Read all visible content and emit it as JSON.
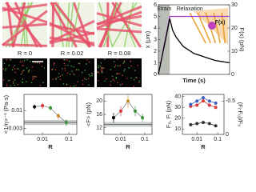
{
  "images": {
    "labels": [
      "R = 0",
      "R = 0.02",
      "R = 0.08"
    ]
  },
  "chart_data": [
    {
      "type": "line",
      "xlabel": "Time (s)",
      "ylabel": "x (μm)",
      "y2label": "F(x) (pN)",
      "annotations": [
        "Strain",
        "Relaxation",
        "F(x)"
      ],
      "x": [
        0,
        0.4,
        0.8,
        1.2,
        1.6,
        2.0,
        2.5,
        3,
        3.5,
        4,
        5,
        6,
        7,
        8,
        9,
        10
      ],
      "xlim": [
        0,
        10
      ],
      "ylim": [
        0,
        6
      ],
      "yticks": [
        0,
        1,
        2,
        3,
        4,
        5,
        6
      ],
      "y2lim": [
        0,
        30
      ],
      "y2ticks": [
        0,
        10,
        20,
        30
      ],
      "series": [
        {
          "color": "#a23cc8",
          "values": [
            0,
            1.2,
            2.5,
            3.7,
            5,
            5,
            5,
            5,
            5,
            5,
            5,
            5,
            5,
            5,
            5,
            5
          ]
        },
        {
          "color": "#000000",
          "axis": "y2",
          "values": [
            0,
            6,
            12,
            18,
            24,
            19,
            16,
            14,
            12,
            11,
            9,
            8,
            7,
            6,
            5.5,
            5
          ]
        }
      ]
    },
    {
      "type": "line",
      "xlabel": "R",
      "ylabel": "<1/η>⁻¹ (Pa·s)",
      "xlog": true,
      "ylog": true,
      "x": [
        0.005,
        0.01,
        0.02,
        0.04,
        0.08
      ],
      "xlim": [
        0.002,
        0.2
      ],
      "xticks": [
        0.01,
        0.1
      ],
      "ylim": [
        0.002,
        0.03
      ],
      "yticks": [
        0.003,
        0.01
      ],
      "hline": 0.0045,
      "hband": [
        0.0038,
        0.0053
      ],
      "series": [
        {
          "color": "#888888",
          "colors": [
            "#000000",
            "#d33b3b",
            "#3a8f3a",
            "#c98a2a",
            "#3a8f3a"
          ],
          "values": [
            0.013,
            0.014,
            0.012,
            0.007,
            0.0045
          ],
          "error": [
            0.002,
            0.003,
            0.002,
            0.0015,
            0.001
          ]
        }
      ]
    },
    {
      "type": "line",
      "xlabel": "R",
      "ylabel": "<F> (pN)",
      "xlog": true,
      "x": [
        0.005,
        0.01,
        0.02,
        0.04,
        0.08
      ],
      "xlim": [
        0.002,
        0.2
      ],
      "xticks": [
        0.01,
        0.1
      ],
      "ylim": [
        10,
        22
      ],
      "yticks": [
        12,
        16,
        20
      ],
      "hline": 13,
      "hband": [
        12.3,
        13.7
      ],
      "series": [
        {
          "color": "#888888",
          "colors": [
            "#000000",
            "#d33b3b",
            "#c98a2a",
            "#3a8f3a",
            "#3a8f3a"
          ],
          "values": [
            15,
            17,
            20,
            17,
            15
          ],
          "error": [
            1.5,
            1.5,
            2,
            1.5,
            1.2
          ]
        }
      ]
    },
    {
      "type": "line",
      "xlabel": "R",
      "ylabel": "F₀, Fᵢ (pN)",
      "y2label": "(Fᵢ-F₀)/F₀",
      "xlog": true,
      "x": [
        0.005,
        0.01,
        0.02,
        0.04,
        0.08
      ],
      "xlim": [
        0.002,
        0.2
      ],
      "xticks": [
        0.01,
        0.1
      ],
      "ylim": [
        5,
        42
      ],
      "yticks": [
        10,
        20,
        30,
        40
      ],
      "y2lim": [
        0,
        -0.6
      ],
      "y2ticks": [
        0,
        -0.5
      ],
      "series": [
        {
          "color": "#d33b3b",
          "values": [
            31,
            32,
            36,
            32,
            30
          ]
        },
        {
          "color": "#333333",
          "values": [
            14,
            15,
            16,
            15,
            13
          ]
        },
        {
          "color": "#3a5fbf",
          "axis": "y2",
          "values": [
            -0.45,
            -0.5,
            -0.55,
            -0.5,
            -0.47
          ]
        }
      ]
    }
  ]
}
